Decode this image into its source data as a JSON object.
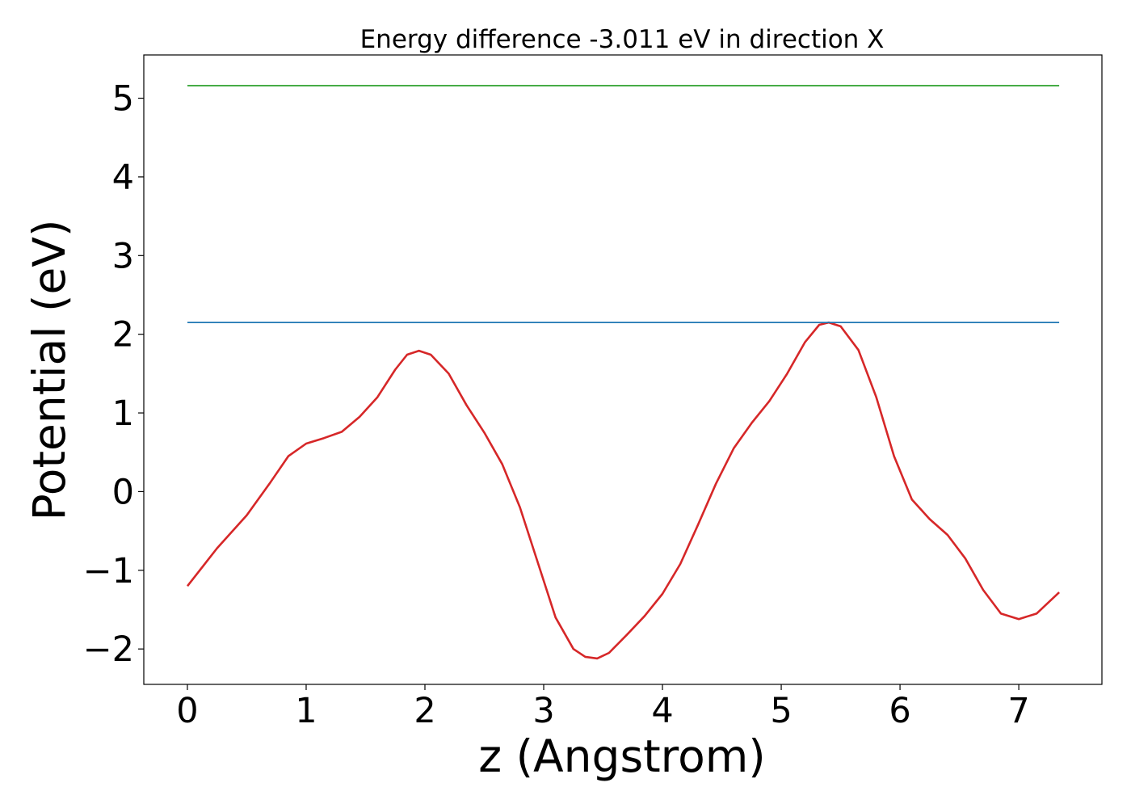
{
  "chart_data": {
    "type": "line",
    "title": "Energy difference -3.011 eV in direction X",
    "xlabel": "z (Angstrom)",
    "ylabel": "Potential (eV)",
    "xlim": [
      -0.367,
      7.7
    ],
    "ylim": [
      -2.45,
      5.55
    ],
    "x_ticks": [
      0,
      1,
      2,
      3,
      4,
      5,
      6,
      7
    ],
    "x_tick_labels": [
      "0",
      "1",
      "2",
      "3",
      "4",
      "5",
      "6",
      "7"
    ],
    "y_ticks": [
      -2,
      -1,
      0,
      1,
      2,
      3,
      4,
      5
    ],
    "y_tick_labels": [
      "−2",
      "−1",
      "0",
      "1",
      "2",
      "3",
      "4",
      "5"
    ],
    "grid": false,
    "series": [
      {
        "color": "#d62728",
        "points": [
          [
            0.0,
            -1.2
          ],
          [
            0.25,
            -0.72
          ],
          [
            0.5,
            -0.3
          ],
          [
            0.7,
            0.12
          ],
          [
            0.85,
            0.45
          ],
          [
            1.0,
            0.61
          ],
          [
            1.15,
            0.68
          ],
          [
            1.3,
            0.76
          ],
          [
            1.45,
            0.95
          ],
          [
            1.6,
            1.2
          ],
          [
            1.75,
            1.55
          ],
          [
            1.85,
            1.74
          ],
          [
            1.95,
            1.79
          ],
          [
            2.05,
            1.74
          ],
          [
            2.2,
            1.5
          ],
          [
            2.35,
            1.1
          ],
          [
            2.5,
            0.75
          ],
          [
            2.65,
            0.35
          ],
          [
            2.8,
            -0.2
          ],
          [
            2.95,
            -0.9
          ],
          [
            3.1,
            -1.6
          ],
          [
            3.25,
            -2.0
          ],
          [
            3.35,
            -2.1
          ],
          [
            3.45,
            -2.12
          ],
          [
            3.55,
            -2.05
          ],
          [
            3.7,
            -1.82
          ],
          [
            3.85,
            -1.58
          ],
          [
            4.0,
            -1.3
          ],
          [
            4.15,
            -0.92
          ],
          [
            4.3,
            -0.42
          ],
          [
            4.45,
            0.1
          ],
          [
            4.6,
            0.55
          ],
          [
            4.75,
            0.87
          ],
          [
            4.9,
            1.15
          ],
          [
            5.05,
            1.5
          ],
          [
            5.2,
            1.9
          ],
          [
            5.32,
            2.12
          ],
          [
            5.4,
            2.15
          ],
          [
            5.5,
            2.1
          ],
          [
            5.65,
            1.8
          ],
          [
            5.8,
            1.2
          ],
          [
            5.95,
            0.45
          ],
          [
            6.1,
            -0.1
          ],
          [
            6.25,
            -0.35
          ],
          [
            6.4,
            -0.55
          ],
          [
            6.55,
            -0.85
          ],
          [
            6.7,
            -1.25
          ],
          [
            6.85,
            -1.55
          ],
          [
            7.0,
            -1.62
          ],
          [
            7.15,
            -1.55
          ],
          [
            7.34,
            -1.28
          ]
        ]
      },
      {
        "color": "#1f77b4",
        "points": [
          [
            0.0,
            2.15
          ],
          [
            7.34,
            2.15
          ]
        ]
      },
      {
        "color": "#2ca02c",
        "points": [
          [
            0.0,
            5.16
          ],
          [
            7.34,
            5.16
          ]
        ]
      }
    ]
  }
}
